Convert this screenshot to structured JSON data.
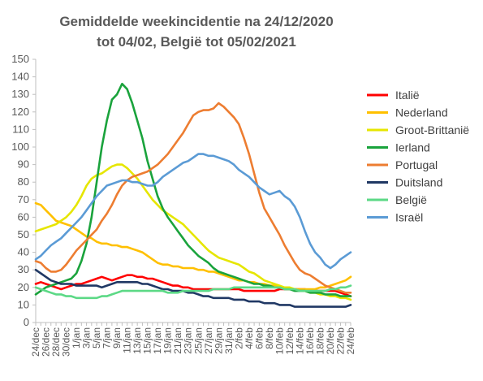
{
  "chart_data": {
    "type": "line",
    "title_lines": [
      "Gemiddelde weekincidentie  na 24/12/2020",
      "tot 04/02, België tot 05/02/2021"
    ],
    "xlabel": "",
    "ylabel": "",
    "ylim": [
      0,
      150
    ],
    "yticks": [
      0,
      10,
      20,
      30,
      40,
      50,
      60,
      70,
      80,
      90,
      100,
      110,
      120,
      130,
      140,
      150
    ],
    "grid": false,
    "legend_position": "right",
    "x": [
      "24/dec",
      "25/dec",
      "26/dec",
      "27/dec",
      "28/dec",
      "29/dec",
      "30/dec",
      "31/dec",
      "1/jan",
      "2/jan",
      "3/jan",
      "4/jan",
      "5/jan",
      "6/jan",
      "7/jan",
      "8/jan",
      "9/jan",
      "10/jan",
      "11/jan",
      "12/jan",
      "13/jan",
      "14/jan",
      "15/jan",
      "16/jan",
      "17/jan",
      "18/jan",
      "19/jan",
      "20/jan",
      "21/jan",
      "22/jan",
      "23/jan",
      "24/jan",
      "25/jan",
      "26/jan",
      "27/jan",
      "28/jan",
      "29/jan",
      "30/jan",
      "31/jan",
      "1/feb",
      "2/feb",
      "3/feb",
      "4/feb",
      "5/feb",
      "6/feb",
      "7/feb",
      "8/feb",
      "9/feb",
      "10/feb",
      "11/feb",
      "12/feb",
      "13/feb",
      "14/feb",
      "15/feb",
      "16/feb",
      "17/feb",
      "18/feb",
      "19/feb",
      "20/feb",
      "21/feb",
      "22/feb",
      "23/feb",
      "24/feb"
    ],
    "x_tick_labels": [
      "24/dec",
      "26/dec",
      "28/dec",
      "30/dec",
      "1/jan",
      "3/jan",
      "5/jan",
      "7/jan",
      "9/jan",
      "11/jan",
      "13/jan",
      "15/jan",
      "17/jan",
      "19/jan",
      "21/jan",
      "23/jan",
      "25/jan",
      "27/jan",
      "29/jan",
      "31/jan",
      "2/feb",
      "4/feb",
      "6/feb",
      "8/feb",
      "10/feb",
      "12/feb",
      "14/feb",
      "16/feb",
      "18/feb",
      "20/feb",
      "22/feb",
      "24/feb"
    ],
    "series": [
      {
        "name": "Italië",
        "color": "#ff0000",
        "values": [
          22,
          23,
          22,
          21,
          20,
          19,
          20,
          21,
          22,
          22,
          23,
          24,
          25,
          26,
          25,
          24,
          25,
          26,
          27,
          27,
          26,
          26,
          25,
          25,
          24,
          23,
          22,
          21,
          21,
          20,
          20,
          19,
          19,
          19,
          19,
          19,
          19,
          19,
          19,
          19,
          19,
          18,
          18,
          18,
          18,
          18,
          18,
          18,
          19,
          19,
          19,
          19,
          19,
          19,
          18,
          18,
          18,
          18,
          18,
          18,
          17,
          16,
          15
        ]
      },
      {
        "name": "Nederland",
        "color": "#ffc000",
        "values": [
          68,
          67,
          64,
          61,
          58,
          57,
          56,
          55,
          53,
          51,
          49,
          48,
          46,
          45,
          45,
          44,
          44,
          43,
          43,
          42,
          41,
          40,
          38,
          36,
          34,
          33,
          33,
          32,
          32,
          31,
          31,
          31,
          30,
          30,
          29,
          29,
          28,
          27,
          26,
          25,
          24,
          24,
          23,
          23,
          22,
          22,
          21,
          21,
          20,
          20,
          19,
          19,
          19,
          19,
          19,
          19,
          20,
          20,
          21,
          22,
          23,
          24,
          26
        ]
      },
      {
        "name": "Groot-Brittanië",
        "color": "#e6e600",
        "values": [
          52,
          53,
          54,
          55,
          56,
          58,
          60,
          63,
          67,
          72,
          78,
          82,
          84,
          85,
          87,
          89,
          90,
          90,
          88,
          85,
          82,
          78,
          74,
          70,
          67,
          64,
          62,
          60,
          58,
          56,
          53,
          50,
          47,
          44,
          41,
          39,
          37,
          36,
          35,
          34,
          33,
          31,
          29,
          28,
          26,
          24,
          23,
          22,
          21,
          20,
          20,
          19,
          18,
          18,
          17,
          17,
          16,
          16,
          15,
          15,
          14,
          14,
          13
        ]
      },
      {
        "name": "Ierland",
        "color": "#1aa33c",
        "values": [
          16,
          18,
          20,
          21,
          22,
          23,
          24,
          25,
          28,
          35,
          45,
          60,
          80,
          100,
          115,
          127,
          130,
          136,
          133,
          125,
          115,
          105,
          92,
          82,
          72,
          65,
          60,
          56,
          52,
          48,
          44,
          41,
          38,
          36,
          34,
          31,
          29,
          28,
          27,
          26,
          25,
          24,
          23,
          22,
          22,
          21,
          21,
          20,
          20,
          19,
          19,
          18,
          18,
          18,
          17,
          17,
          17,
          16,
          16,
          16,
          15,
          15,
          15
        ]
      },
      {
        "name": "Portugal",
        "color": "#ed7d31",
        "values": [
          35,
          34,
          31,
          29,
          29,
          30,
          33,
          37,
          41,
          44,
          47,
          50,
          53,
          58,
          62,
          67,
          73,
          78,
          81,
          83,
          84,
          85,
          86,
          88,
          90,
          93,
          96,
          100,
          104,
          108,
          113,
          118,
          120,
          121,
          121,
          122,
          125,
          123,
          120,
          117,
          113,
          105,
          96,
          85,
          74,
          65,
          60,
          55,
          50,
          44,
          39,
          34,
          30,
          28,
          27,
          25,
          23,
          21,
          20,
          19,
          18,
          17,
          17
        ]
      },
      {
        "name": "Duitsland",
        "color": "#203864",
        "values": [
          30,
          28,
          26,
          24,
          23,
          22,
          22,
          22,
          21,
          21,
          21,
          21,
          21,
          20,
          21,
          22,
          23,
          23,
          23,
          23,
          23,
          22,
          22,
          21,
          20,
          19,
          19,
          18,
          18,
          18,
          17,
          17,
          16,
          15,
          15,
          14,
          14,
          14,
          14,
          13,
          13,
          13,
          12,
          12,
          12,
          11,
          11,
          11,
          10,
          10,
          10,
          9,
          9,
          9,
          9,
          9,
          9,
          9,
          9,
          9,
          9,
          9,
          10
        ]
      },
      {
        "name": "België",
        "color": "#5cd986",
        "values": [
          20,
          19,
          18,
          17,
          16,
          16,
          15,
          15,
          14,
          14,
          14,
          14,
          14,
          15,
          15,
          16,
          17,
          18,
          18,
          18,
          18,
          18,
          18,
          18,
          18,
          18,
          17,
          17,
          17,
          18,
          18,
          18,
          18,
          18,
          18,
          19,
          19,
          19,
          19,
          20,
          20,
          20,
          20,
          20,
          20,
          20,
          20,
          20,
          20,
          19,
          19,
          19,
          18,
          18,
          18,
          18,
          18,
          18,
          19,
          19,
          20,
          20,
          21
        ]
      },
      {
        "name": "Israël",
        "color": "#5b9bd5",
        "values": [
          36,
          38,
          41,
          44,
          46,
          48,
          51,
          54,
          57,
          60,
          64,
          68,
          72,
          75,
          78,
          79,
          80,
          81,
          81,
          80,
          80,
          79,
          78,
          78,
          80,
          83,
          85,
          87,
          89,
          91,
          92,
          94,
          96,
          96,
          95,
          95,
          94,
          93,
          92,
          90,
          87,
          85,
          83,
          80,
          77,
          75,
          73,
          74,
          75,
          72,
          70,
          66,
          60,
          52,
          45,
          40,
          37,
          33,
          31,
          33,
          36,
          38,
          40
        ]
      }
    ]
  }
}
